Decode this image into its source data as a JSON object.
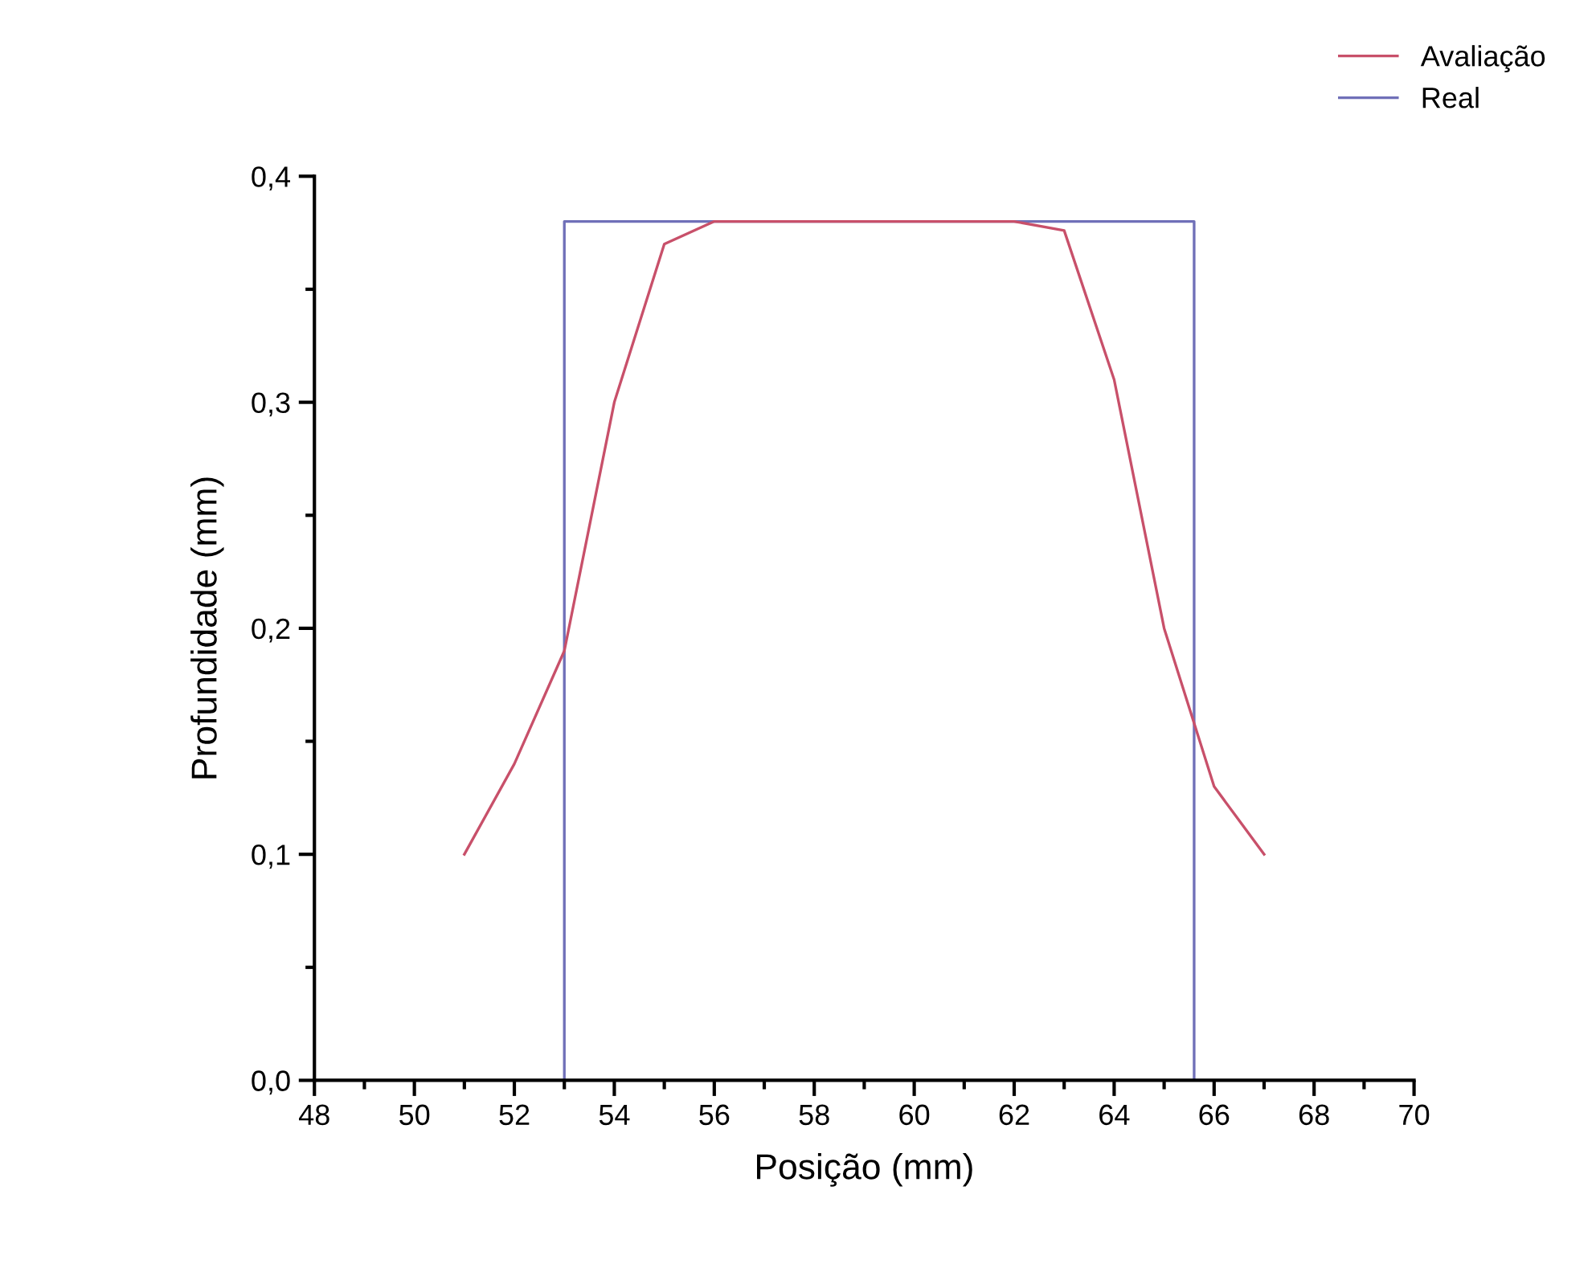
{
  "chart_data": {
    "type": "line",
    "xlabel": "Posição (mm)",
    "ylabel": "Profundidade (mm)",
    "xlim": [
      48,
      70
    ],
    "xticks": [
      48,
      50,
      52,
      54,
      56,
      58,
      60,
      62,
      64,
      66,
      68,
      70
    ],
    "ylim": [
      0,
      0.4
    ],
    "yticks": [
      {
        "value": 0,
        "label": "0,0"
      },
      {
        "value": 0.1,
        "label": "0,1"
      },
      {
        "value": 0.2,
        "label": "0,2"
      },
      {
        "value": 0.3,
        "label": "0,3"
      },
      {
        "value": 0.4,
        "label": "0,4"
      }
    ],
    "grid": false,
    "legend": "top right",
    "marker": "none",
    "line_style": "solid",
    "series": [
      {
        "name": "Avaliação",
        "color": "#c8506a",
        "x": [
          51,
          52,
          53,
          54,
          55,
          56,
          57,
          58,
          59,
          60,
          61,
          62,
          63,
          64,
          65,
          66,
          67
        ],
        "values": [
          0.1,
          0.14,
          0.19,
          0.3,
          0.37,
          0.38,
          0.38,
          0.38,
          0.38,
          0.38,
          0.38,
          0.38,
          0.376,
          0.31,
          0.2,
          0.13,
          0.1
        ]
      },
      {
        "name": "Real",
        "color": "#7070b8",
        "x": [
          53,
          53,
          65.6,
          65.6
        ],
        "values": [
          0,
          0.38,
          0.38,
          0
        ]
      }
    ]
  }
}
